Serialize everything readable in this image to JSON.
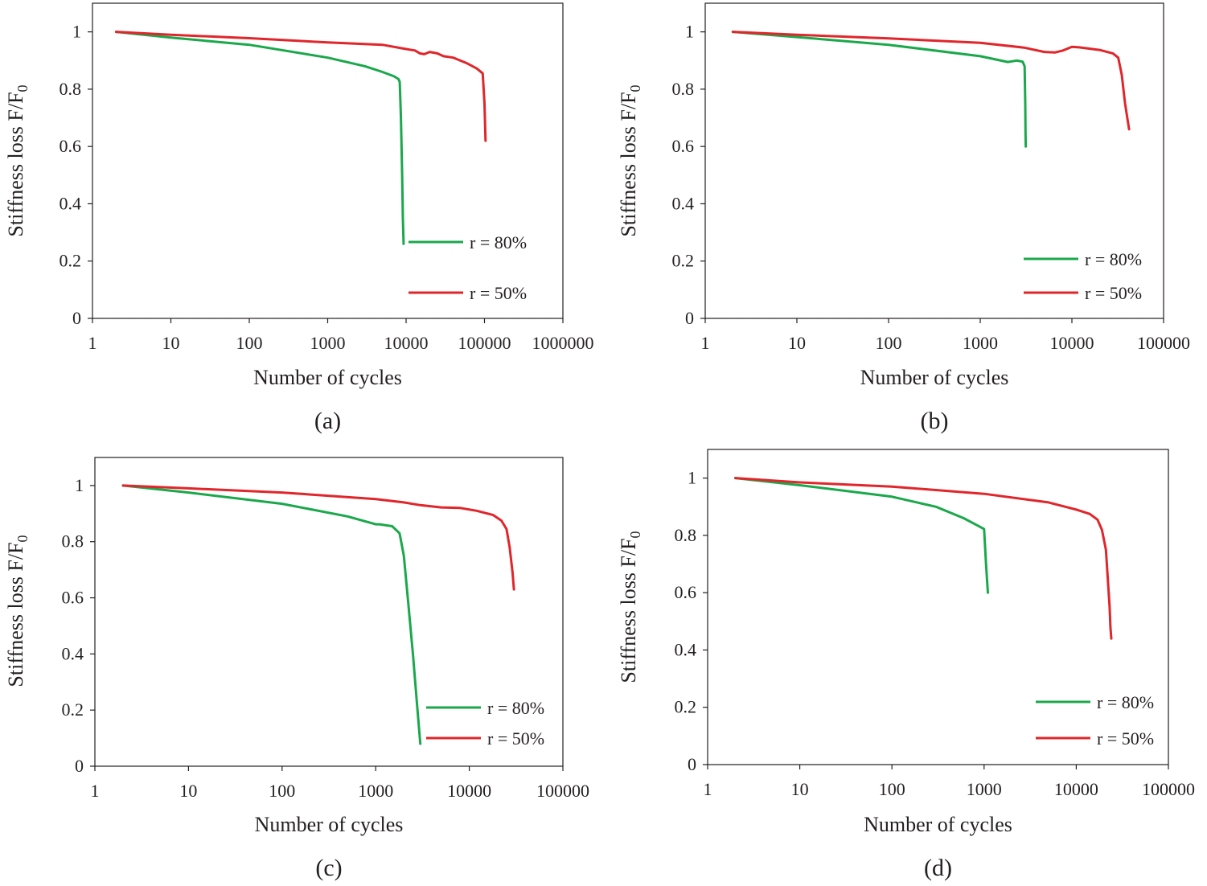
{
  "chart_data": [
    {
      "type": "line",
      "panel_label": "(a)",
      "xscale": "log",
      "xlim": [
        1,
        1000000
      ],
      "ylim": [
        0,
        1.1
      ],
      "xticks": [
        1,
        10,
        100,
        1000,
        10000,
        100000,
        1000000
      ],
      "xtick_labels": [
        "1",
        "10",
        "100",
        "1000",
        "10000",
        "100000",
        "1000000"
      ],
      "yticks": [
        0,
        0.2,
        0.4,
        0.6,
        0.8,
        1
      ],
      "ytick_labels": [
        "0",
        "0.2",
        "0.4",
        "0.6",
        "0.8",
        "1"
      ],
      "xlabel": "Number of cycles",
      "ylabel": "Stiffness loss F/F",
      "ylabel_subscript": "0",
      "legend_position": "lower-right",
      "series": [
        {
          "name": "r = 80%",
          "color": "#1aa84b",
          "x": [
            2,
            10,
            100,
            1000,
            3000,
            5000,
            7000,
            8000,
            8300,
            8600,
            8900,
            9100,
            9300
          ],
          "y": [
            1.0,
            0.98,
            0.955,
            0.91,
            0.88,
            0.86,
            0.845,
            0.835,
            0.825,
            0.7,
            0.5,
            0.35,
            0.26
          ]
        },
        {
          "name": "r = 50%",
          "color": "#e0262b",
          "x": [
            2,
            10,
            100,
            1000,
            5000,
            10000,
            13000,
            15000,
            17000,
            20000,
            25000,
            30000,
            40000,
            60000,
            80000,
            95000,
            100000,
            103000
          ],
          "y": [
            1.0,
            0.99,
            0.978,
            0.963,
            0.955,
            0.94,
            0.935,
            0.925,
            0.922,
            0.93,
            0.925,
            0.915,
            0.91,
            0.89,
            0.872,
            0.855,
            0.75,
            0.62
          ]
        }
      ]
    },
    {
      "type": "line",
      "panel_label": "(b)",
      "xscale": "log",
      "xlim": [
        1,
        100000
      ],
      "ylim": [
        0,
        1.1
      ],
      "xticks": [
        1,
        10,
        100,
        1000,
        10000,
        100000
      ],
      "xtick_labels": [
        "1",
        "10",
        "100",
        "1000",
        "10000",
        "100000"
      ],
      "yticks": [
        0,
        0.2,
        0.4,
        0.6,
        0.8,
        1
      ],
      "ytick_labels": [
        "0",
        "0.2",
        "0.4",
        "0.6",
        "0.8",
        "1"
      ],
      "xlabel": "Number of cycles",
      "ylabel": "Stiffness loss F/F",
      "ylabel_subscript": "0",
      "legend_position": "lower-right",
      "series": [
        {
          "name": "r = 80%",
          "color": "#1aa84b",
          "x": [
            2,
            10,
            100,
            1000,
            2000,
            2500,
            2900,
            3050,
            3100,
            3120,
            3140
          ],
          "y": [
            1.0,
            0.982,
            0.955,
            0.915,
            0.895,
            0.9,
            0.896,
            0.88,
            0.75,
            0.65,
            0.6
          ]
        },
        {
          "name": "r = 50%",
          "color": "#e0262b",
          "x": [
            2,
            10,
            100,
            1000,
            3000,
            5000,
            6500,
            8000,
            10000,
            12000,
            20000,
            28000,
            32000,
            35000,
            38000,
            42000
          ],
          "y": [
            1.0,
            0.99,
            0.977,
            0.962,
            0.945,
            0.93,
            0.928,
            0.935,
            0.948,
            0.946,
            0.937,
            0.925,
            0.91,
            0.85,
            0.75,
            0.66
          ]
        }
      ]
    },
    {
      "type": "line",
      "panel_label": "(c)",
      "xscale": "log",
      "xlim": [
        1,
        100000
      ],
      "ylim": [
        0,
        1.1
      ],
      "xticks": [
        1,
        10,
        100,
        1000,
        10000,
        100000
      ],
      "xtick_labels": [
        "1",
        "10",
        "100",
        "1000",
        "10000",
        "100000"
      ],
      "yticks": [
        0,
        0.2,
        0.4,
        0.6,
        0.8,
        1
      ],
      "ytick_labels": [
        "0",
        "0.2",
        "0.4",
        "0.6",
        "0.8",
        "1"
      ],
      "xlabel": "Number of cycles",
      "ylabel": "Stiffness loss F/F",
      "ylabel_subscript": "0",
      "legend_position": "lower-right",
      "series": [
        {
          "name": "r = 80%",
          "color": "#1aa84b",
          "x": [
            2,
            10,
            100,
            500,
            1000,
            1100,
            1500,
            1800,
            2000,
            2200,
            2500,
            2800,
            3000
          ],
          "y": [
            1.0,
            0.975,
            0.935,
            0.89,
            0.862,
            0.862,
            0.855,
            0.83,
            0.75,
            0.6,
            0.4,
            0.2,
            0.08
          ]
        },
        {
          "name": "r = 50%",
          "color": "#e0262b",
          "x": [
            2,
            10,
            100,
            1000,
            2000,
            3000,
            5000,
            8000,
            12000,
            18000,
            22000,
            25000,
            27000,
            29000,
            30000
          ],
          "y": [
            1.0,
            0.99,
            0.975,
            0.952,
            0.94,
            0.93,
            0.922,
            0.92,
            0.91,
            0.895,
            0.875,
            0.845,
            0.78,
            0.69,
            0.63
          ]
        }
      ]
    },
    {
      "type": "line",
      "panel_label": "(d)",
      "xscale": "log",
      "xlim": [
        1,
        100000
      ],
      "ylim": [
        0,
        1.1
      ],
      "xticks": [
        1,
        10,
        100,
        1000,
        10000,
        100000
      ],
      "xtick_labels": [
        "1",
        "10",
        "100",
        "1000",
        "10000",
        "100000"
      ],
      "yticks": [
        0,
        0.2,
        0.4,
        0.6,
        0.8,
        1
      ],
      "ytick_labels": [
        "0",
        "0.2",
        "0.4",
        "0.6",
        "0.8",
        "1"
      ],
      "xlabel": "Number of cycles",
      "ylabel": "Stiffness loss F/F",
      "ylabel_subscript": "0",
      "legend_position": "lower-right",
      "series": [
        {
          "name": "r = 80%",
          "color": "#1aa84b",
          "x": [
            2,
            10,
            100,
            300,
            600,
            900,
            1000,
            1050,
            1100
          ],
          "y": [
            1.0,
            0.975,
            0.935,
            0.9,
            0.86,
            0.83,
            0.822,
            0.7,
            0.6
          ]
        },
        {
          "name": "r = 50%",
          "color": "#e0262b",
          "x": [
            2,
            10,
            100,
            1000,
            5000,
            10000,
            14000,
            17000,
            19000,
            21000,
            22000,
            23000,
            23500,
            24000
          ],
          "y": [
            1.0,
            0.985,
            0.97,
            0.945,
            0.915,
            0.89,
            0.875,
            0.855,
            0.82,
            0.75,
            0.65,
            0.55,
            0.48,
            0.44
          ]
        }
      ]
    }
  ]
}
